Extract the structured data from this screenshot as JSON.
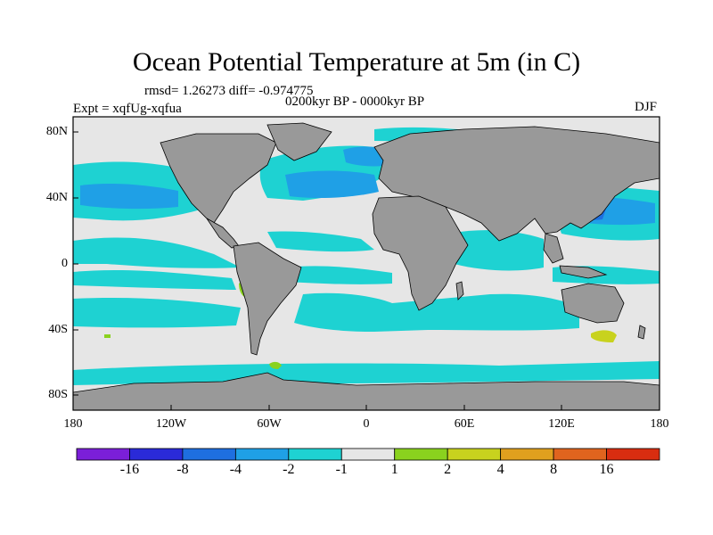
{
  "title": "Ocean Potential Temperature at 5m (in C)",
  "stats": "rmsd= 1.26273  diff= -0.974775",
  "experiment": "Expt = xqfUg-xqfua",
  "period": "0200kyr BP - 0000kyr BP",
  "season": "DJF",
  "lat_ticks": [
    "80N",
    "40N",
    "0",
    "40S",
    "80S"
  ],
  "lon_ticks": [
    "180",
    "120W",
    "60W",
    "0",
    "60E",
    "120E",
    "180"
  ],
  "colorbar": {
    "labels": [
      "-16",
      "-8",
      "-4",
      "-2",
      "-1",
      "1",
      "2",
      "4",
      "8",
      "16"
    ],
    "colors": [
      "#7b1fd8",
      "#2a2ad8",
      "#1e6fe0",
      "#1fa0e6",
      "#1ed2d2",
      "#e6e6e6",
      "#8ad21e",
      "#c8d21e",
      "#e0a01e",
      "#e0641e",
      "#d82d10"
    ]
  },
  "map_colors": {
    "land": "#999999",
    "neutral": "#e6e6e6",
    "cool": "#1ed2d2",
    "cooler": "#1fa0e6",
    "coolest": "#1e6fe0",
    "warm": "#8ad21e",
    "warmer": "#c8d21e"
  }
}
